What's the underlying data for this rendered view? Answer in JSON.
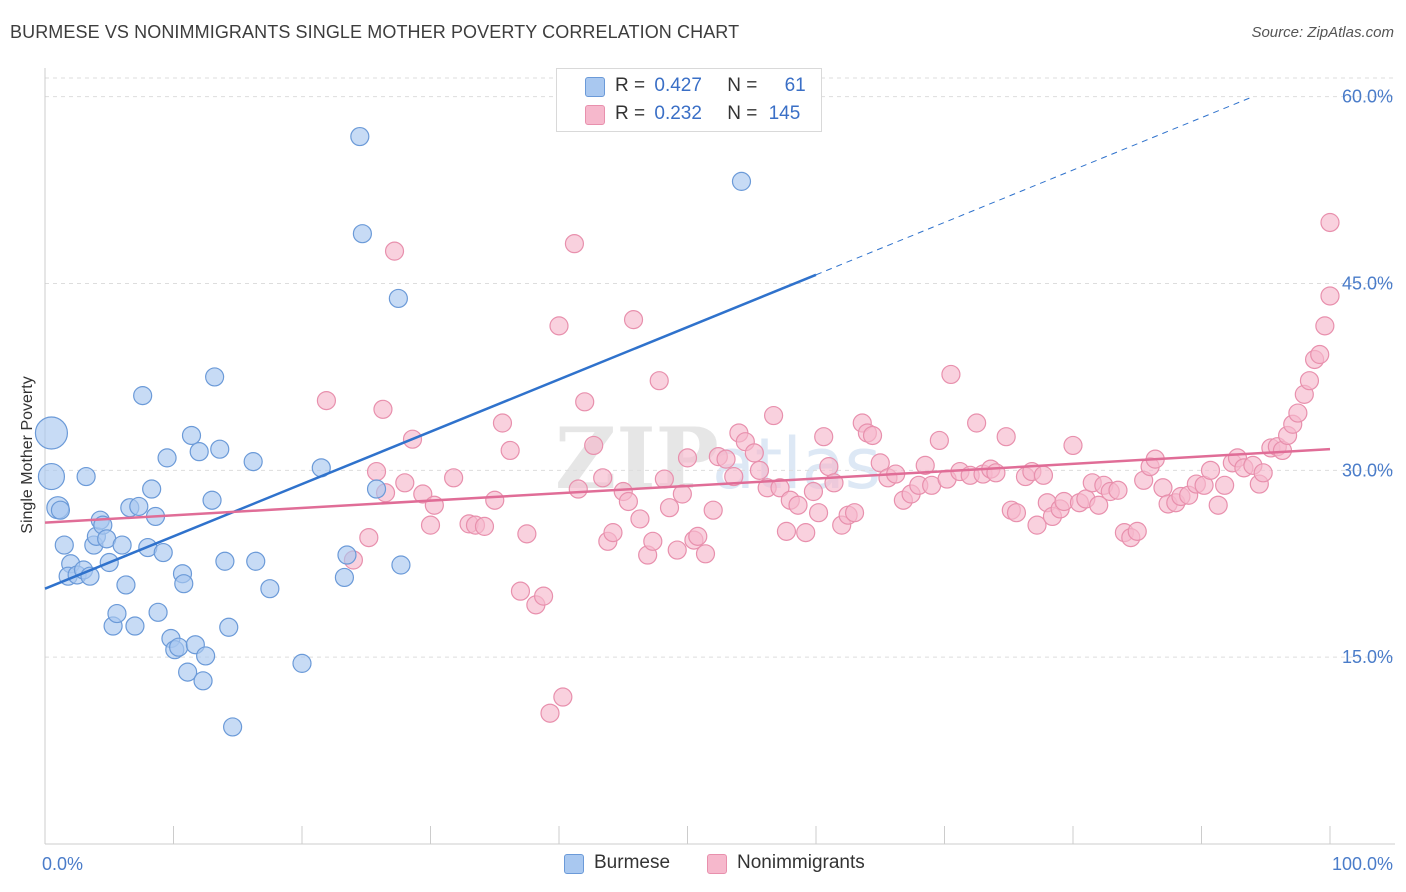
{
  "title": "BURMESE VS NONIMMIGRANTS SINGLE MOTHER POVERTY CORRELATION CHART",
  "source": "Source: ZipAtlas.com",
  "watermark": "ZIPatlas",
  "colors": {
    "burmese_fill": "#a9c8f0",
    "burmese_stroke": "#6b9ad8",
    "burmese_line": "#2f72cc",
    "nonimm_fill": "#f6b8cc",
    "nonimm_stroke": "#e890ad",
    "nonimm_line": "#e06d97",
    "tick_label": "#4a7cc9",
    "grid": "#dddddd"
  },
  "legend": {
    "rows": [
      {
        "r_label": "R =",
        "r_value": "0.427",
        "n_label": "N =",
        "n_value": "61"
      },
      {
        "r_label": "R =",
        "r_value": "0.232",
        "n_label": "N =",
        "n_value": "145"
      }
    ]
  },
  "chart_data": {
    "type": "scatter",
    "title": "BURMESE VS NONIMMIGRANTS SINGLE MOTHER POVERTY CORRELATION CHART",
    "xlabel": "",
    "ylabel": "Single Mother Poverty",
    "xlim": [
      0,
      100
    ],
    "ylim": [
      0,
      61.5
    ],
    "x_tick_labels": [
      "0.0%",
      "100.0%"
    ],
    "y_ticks": [
      15,
      30,
      45,
      60
    ],
    "y_tick_labels": [
      "15.0%",
      "30.0%",
      "45.0%",
      "60.0%"
    ],
    "grid": true,
    "legend_position": "bottom-center",
    "series": [
      {
        "name": "Burmese",
        "trend": {
          "x0": 0,
          "y0": 20.5,
          "x1": 60,
          "y1": 45.7,
          "dashed_to_x": 94,
          "dashed_to_y": 60.0
        },
        "points": [
          [
            0.5,
            33.0
          ],
          [
            0.5,
            29.5
          ],
          [
            1.0,
            27.0
          ],
          [
            1.5,
            24.0
          ],
          [
            2.0,
            22.5
          ],
          [
            1.8,
            21.5
          ],
          [
            2.5,
            21.6
          ],
          [
            3.0,
            22.0
          ],
          [
            3.2,
            29.5
          ],
          [
            3.5,
            21.5
          ],
          [
            3.8,
            24.0
          ],
          [
            4.0,
            24.7
          ],
          [
            4.3,
            26.0
          ],
          [
            4.5,
            25.6
          ],
          [
            4.8,
            24.5
          ],
          [
            5.0,
            22.6
          ],
          [
            5.3,
            17.5
          ],
          [
            5.6,
            18.5
          ],
          [
            6.0,
            24.0
          ],
          [
            6.3,
            20.8
          ],
          [
            6.6,
            27.0
          ],
          [
            7.0,
            17.5
          ],
          [
            7.3,
            27.1
          ],
          [
            7.6,
            36.0
          ],
          [
            8.0,
            23.8
          ],
          [
            8.3,
            28.5
          ],
          [
            8.6,
            26.3
          ],
          [
            8.8,
            18.6
          ],
          [
            9.2,
            23.4
          ],
          [
            9.5,
            31.0
          ],
          [
            9.8,
            16.5
          ],
          [
            10.1,
            15.6
          ],
          [
            10.4,
            15.8
          ],
          [
            10.7,
            21.7
          ],
          [
            10.8,
            20.9
          ],
          [
            11.1,
            13.8
          ],
          [
            11.4,
            32.8
          ],
          [
            11.7,
            16.0
          ],
          [
            12.0,
            31.5
          ],
          [
            12.3,
            13.1
          ],
          [
            12.5,
            15.1
          ],
          [
            13.0,
            27.6
          ],
          [
            13.2,
            37.5
          ],
          [
            13.6,
            31.7
          ],
          [
            14.0,
            22.7
          ],
          [
            14.3,
            17.4
          ],
          [
            14.6,
            9.4
          ],
          [
            16.2,
            30.7
          ],
          [
            16.4,
            22.7
          ],
          [
            17.5,
            20.5
          ],
          [
            20.0,
            14.5
          ],
          [
            21.5,
            30.2
          ],
          [
            23.5,
            23.2
          ],
          [
            23.3,
            21.4
          ],
          [
            24.5,
            56.8
          ],
          [
            24.7,
            49.0
          ],
          [
            25.8,
            28.5
          ],
          [
            27.5,
            43.8
          ],
          [
            27.7,
            22.4
          ],
          [
            54.2,
            53.2
          ],
          [
            1.2,
            26.8
          ]
        ],
        "sizes": [
          16,
          13,
          11,
          9,
          9,
          9,
          9,
          9,
          9,
          9,
          9,
          9,
          9,
          9,
          9,
          9,
          9,
          9,
          9,
          9,
          9,
          9,
          9,
          9,
          9,
          9,
          9,
          9,
          9,
          9,
          9,
          9,
          9,
          9,
          9,
          9,
          9,
          9,
          9,
          9,
          9,
          9,
          9,
          9,
          9,
          9,
          9,
          9,
          9,
          9,
          9,
          9,
          9,
          9,
          9,
          9,
          9,
          9,
          9,
          9,
          9
        ]
      },
      {
        "name": "Nonimmigrants",
        "trend": {
          "x0": 0,
          "y0": 25.8,
          "x1": 100,
          "y1": 31.7
        },
        "points": [
          [
            21.9,
            35.6
          ],
          [
            24.0,
            22.8
          ],
          [
            25.2,
            24.6
          ],
          [
            25.8,
            29.9
          ],
          [
            26.5,
            28.2
          ],
          [
            26.3,
            34.9
          ],
          [
            27.2,
            47.6
          ],
          [
            28.0,
            29.0
          ],
          [
            28.6,
            32.5
          ],
          [
            29.4,
            28.1
          ],
          [
            30.0,
            25.6
          ],
          [
            30.3,
            27.2
          ],
          [
            31.8,
            29.4
          ],
          [
            33.0,
            25.7
          ],
          [
            33.5,
            25.6
          ],
          [
            34.2,
            25.5
          ],
          [
            35.0,
            27.6
          ],
          [
            35.6,
            33.8
          ],
          [
            36.2,
            31.6
          ],
          [
            37.0,
            20.3
          ],
          [
            37.5,
            24.9
          ],
          [
            38.2,
            19.2
          ],
          [
            38.8,
            19.9
          ],
          [
            39.3,
            10.5
          ],
          [
            40.0,
            41.6
          ],
          [
            40.3,
            11.8
          ],
          [
            41.2,
            48.2
          ],
          [
            41.5,
            28.5
          ],
          [
            42.0,
            35.5
          ],
          [
            42.7,
            32.0
          ],
          [
            43.4,
            29.4
          ],
          [
            43.8,
            24.3
          ],
          [
            44.2,
            25.0
          ],
          [
            45.0,
            28.3
          ],
          [
            45.4,
            27.5
          ],
          [
            45.8,
            42.1
          ],
          [
            46.3,
            26.1
          ],
          [
            46.9,
            23.2
          ],
          [
            47.3,
            24.3
          ],
          [
            47.8,
            37.2
          ],
          [
            48.2,
            29.3
          ],
          [
            48.6,
            27.0
          ],
          [
            49.2,
            23.6
          ],
          [
            49.6,
            28.1
          ],
          [
            50.0,
            31.0
          ],
          [
            50.5,
            24.4
          ],
          [
            50.8,
            24.7
          ],
          [
            51.4,
            23.3
          ],
          [
            52.0,
            26.8
          ],
          [
            52.4,
            31.1
          ],
          [
            53.0,
            30.9
          ],
          [
            53.6,
            29.5
          ],
          [
            54.0,
            33.0
          ],
          [
            54.5,
            32.3
          ],
          [
            55.2,
            31.4
          ],
          [
            55.6,
            30.0
          ],
          [
            56.2,
            28.6
          ],
          [
            56.7,
            34.4
          ],
          [
            57.2,
            28.6
          ],
          [
            57.7,
            25.1
          ],
          [
            58.0,
            27.6
          ],
          [
            58.6,
            27.2
          ],
          [
            59.2,
            25.0
          ],
          [
            59.8,
            28.3
          ],
          [
            60.2,
            26.6
          ],
          [
            60.6,
            32.7
          ],
          [
            61.0,
            30.3
          ],
          [
            61.4,
            29.0
          ],
          [
            62.0,
            25.6
          ],
          [
            62.5,
            26.4
          ],
          [
            63.0,
            26.6
          ],
          [
            63.6,
            33.8
          ],
          [
            64.0,
            33.0
          ],
          [
            64.4,
            32.8
          ],
          [
            65.0,
            30.6
          ],
          [
            65.6,
            29.4
          ],
          [
            66.2,
            29.7
          ],
          [
            66.8,
            27.6
          ],
          [
            67.4,
            28.1
          ],
          [
            68.0,
            28.8
          ],
          [
            68.5,
            30.4
          ],
          [
            69.0,
            28.8
          ],
          [
            69.6,
            32.4
          ],
          [
            70.2,
            29.3
          ],
          [
            70.5,
            37.7
          ],
          [
            71.2,
            29.9
          ],
          [
            72.0,
            29.6
          ],
          [
            72.5,
            33.8
          ],
          [
            73.0,
            29.7
          ],
          [
            73.6,
            30.1
          ],
          [
            74.0,
            29.8
          ],
          [
            74.8,
            32.7
          ],
          [
            75.2,
            26.8
          ],
          [
            75.6,
            26.6
          ],
          [
            76.3,
            29.5
          ],
          [
            76.8,
            29.9
          ],
          [
            77.2,
            25.6
          ],
          [
            77.7,
            29.6
          ],
          [
            78.0,
            27.4
          ],
          [
            78.4,
            26.3
          ],
          [
            79.0,
            26.9
          ],
          [
            79.3,
            27.5
          ],
          [
            80.0,
            32.0
          ],
          [
            80.5,
            27.4
          ],
          [
            81.0,
            27.7
          ],
          [
            81.5,
            29.0
          ],
          [
            82.0,
            27.2
          ],
          [
            82.4,
            28.8
          ],
          [
            82.9,
            28.3
          ],
          [
            83.5,
            28.4
          ],
          [
            84.0,
            25.0
          ],
          [
            84.5,
            24.6
          ],
          [
            85.0,
            25.1
          ],
          [
            85.5,
            29.2
          ],
          [
            86.0,
            30.3
          ],
          [
            86.4,
            30.9
          ],
          [
            87.0,
            28.6
          ],
          [
            87.4,
            27.3
          ],
          [
            88.0,
            27.4
          ],
          [
            88.4,
            27.9
          ],
          [
            89.0,
            28.0
          ],
          [
            89.6,
            28.9
          ],
          [
            90.2,
            28.8
          ],
          [
            90.7,
            30.0
          ],
          [
            91.3,
            27.2
          ],
          [
            91.8,
            28.8
          ],
          [
            92.4,
            30.6
          ],
          [
            92.8,
            31.0
          ],
          [
            93.3,
            30.2
          ],
          [
            94.0,
            30.4
          ],
          [
            94.5,
            28.9
          ],
          [
            94.8,
            29.8
          ],
          [
            95.4,
            31.8
          ],
          [
            95.9,
            31.9
          ],
          [
            96.3,
            31.6
          ],
          [
            96.7,
            32.8
          ],
          [
            97.1,
            33.7
          ],
          [
            97.5,
            34.6
          ],
          [
            98.0,
            36.1
          ],
          [
            98.4,
            37.2
          ],
          [
            98.8,
            38.9
          ],
          [
            99.2,
            39.3
          ],
          [
            99.6,
            41.6
          ],
          [
            100.0,
            44.0
          ],
          [
            100.0,
            49.9
          ]
        ]
      }
    ]
  },
  "bottom_legend": {
    "items": [
      {
        "label": "Burmese"
      },
      {
        "label": "Nonimmigrants"
      }
    ]
  }
}
